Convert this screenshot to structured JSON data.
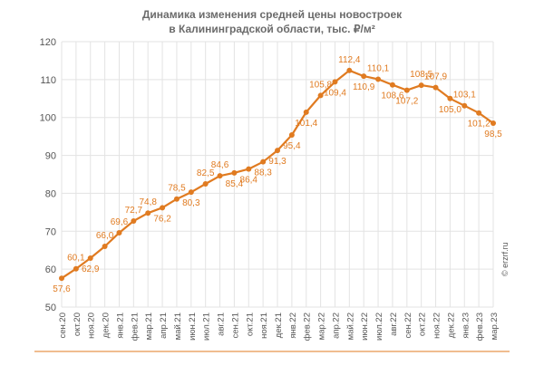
{
  "title_line1": "Динамика изменения средней цены новостроек",
  "title_line2": "в Калининградской области, тыс. ₽/м²",
  "watermark": "© erzrf.ru",
  "colors": {
    "line": "#e07b21",
    "marker": "#e07b21",
    "grid": "#e3e3e3",
    "axis_text": "#555555",
    "label": "#e07b21",
    "bottom_rule": "#e07b21"
  },
  "chart_data": {
    "type": "line",
    "title": "Динамика изменения средней цены новостроек в Калининградской области, тыс. ₽/м²",
    "xlabel": "",
    "ylabel": "",
    "ylim": [
      50,
      120
    ],
    "yticks": [
      50,
      60,
      70,
      80,
      90,
      100,
      110,
      120
    ],
    "grid": true,
    "legend": "none",
    "categories": [
      "сен.20",
      "окт.20",
      "ноя.20",
      "дек.20",
      "янв.21",
      "фев.21",
      "мар.21",
      "апр.21",
      "май.21",
      "июн.21",
      "июл.21",
      "авг.21",
      "сен.21",
      "окт.21",
      "ноя.21",
      "дек.21",
      "янв.22",
      "фев.22",
      "мар.22",
      "апр.22",
      "май.22",
      "июн.22",
      "июл.22",
      "авг.22",
      "сен.22",
      "окт.22",
      "ноя.22",
      "дек.22",
      "янв.23",
      "фев.23",
      "мар.23"
    ],
    "series": [
      {
        "values": [
          57.6,
          60.1,
          62.9,
          66.0,
          69.6,
          72.7,
          74.8,
          76.2,
          78.5,
          80.3,
          82.5,
          84.6,
          85.4,
          86.4,
          88.3,
          91.3,
          95.4,
          101.4,
          105.8,
          109.4,
          112.4,
          110.9,
          110.1,
          108.6,
          107.2,
          108.5,
          107.9,
          105.0,
          103.1,
          101.2,
          98.5
        ]
      }
    ],
    "data_labels": [
      "57,6",
      "60,1",
      "62,9",
      "66,0",
      "69,6",
      "72,7",
      "74,8",
      "76,2",
      "78,5",
      "80,3",
      "82,5",
      "84,6",
      "85,4",
      "86,4",
      "88,3",
      "91,3",
      "95,4",
      "101,4",
      "105,8",
      "109,4",
      "112,4",
      "110,9",
      "110,1",
      "108,6",
      "107,2",
      "108,5",
      "107,9",
      "105,0",
      "103,1",
      "101,2",
      "98,5"
    ]
  }
}
